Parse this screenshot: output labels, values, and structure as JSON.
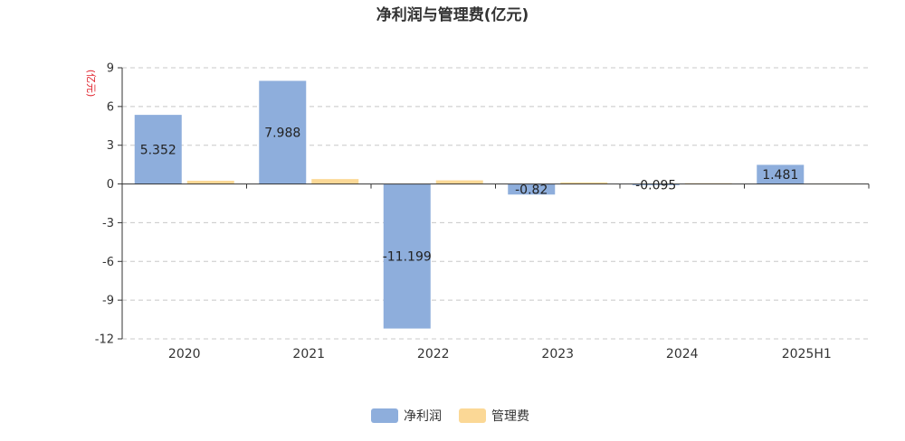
{
  "chart_data": {
    "type": "bar",
    "title": "净利润与管理费(亿元)",
    "ylabel": "(亿元)",
    "xlabel": "",
    "categories": [
      "2020",
      "2021",
      "2022",
      "2023",
      "2024",
      "2025H1"
    ],
    "series": [
      {
        "name": "净利润",
        "color": "#8eaedc",
        "values": [
          5.352,
          7.988,
          -11.199,
          -0.82,
          -0.095,
          1.481
        ],
        "show_labels": true
      },
      {
        "name": "管理费",
        "color": "#fbd896",
        "values": [
          0.25,
          0.38,
          0.28,
          0.12,
          0.06,
          0.02
        ],
        "show_labels": false
      }
    ],
    "ylim": [
      -12,
      9
    ],
    "yticks": [
      9,
      6,
      3,
      0,
      -3,
      -6,
      -9,
      -12
    ],
    "grid": true,
    "legend_position": "bottom-center"
  }
}
